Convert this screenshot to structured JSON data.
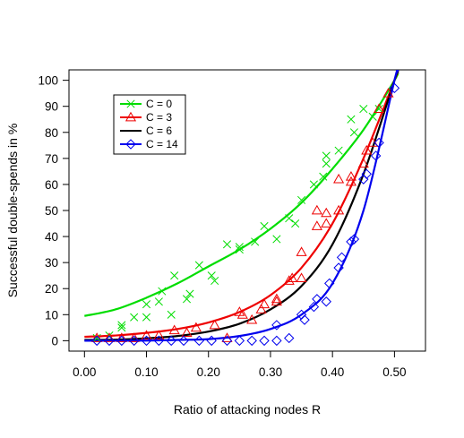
{
  "chart_data": {
    "type": "scatter",
    "title": "",
    "xlabel": "Ratio of attacking nodes R",
    "ylabel": "Successful double-spends in %",
    "xlim": [
      -0.025,
      0.55
    ],
    "ylim": [
      -4,
      104
    ],
    "x_ticks": [
      0.0,
      0.1,
      0.2,
      0.3,
      0.4,
      0.5
    ],
    "x_tick_labels": [
      "0.00",
      "0.10",
      "0.20",
      "0.30",
      "0.40",
      "0.50"
    ],
    "y_ticks": [
      0,
      10,
      20,
      30,
      40,
      50,
      60,
      70,
      80,
      90,
      100
    ],
    "y_tick_labels": [
      "0",
      "10",
      "20",
      "30",
      "40",
      "50",
      "60",
      "70",
      "80",
      "90",
      "100"
    ],
    "grid": false,
    "legend_position": "top-left",
    "series": [
      {
        "name": "C = 0",
        "color": "#00dd00",
        "marker": "x",
        "points": [
          [
            0.02,
            1
          ],
          [
            0.04,
            2
          ],
          [
            0.06,
            5
          ],
          [
            0.06,
            6
          ],
          [
            0.08,
            9
          ],
          [
            0.1,
            9
          ],
          [
            0.1,
            14
          ],
          [
            0.12,
            15
          ],
          [
            0.125,
            19
          ],
          [
            0.14,
            10
          ],
          [
            0.145,
            25
          ],
          [
            0.165,
            16
          ],
          [
            0.17,
            18
          ],
          [
            0.185,
            29
          ],
          [
            0.205,
            25
          ],
          [
            0.21,
            23
          ],
          [
            0.23,
            37
          ],
          [
            0.25,
            35
          ],
          [
            0.25,
            36
          ],
          [
            0.275,
            38
          ],
          [
            0.29,
            44
          ],
          [
            0.31,
            39
          ],
          [
            0.33,
            47
          ],
          [
            0.34,
            45
          ],
          [
            0.35,
            54
          ],
          [
            0.37,
            60
          ],
          [
            0.385,
            63
          ],
          [
            0.39,
            68
          ],
          [
            0.39,
            71
          ],
          [
            0.41,
            73
          ],
          [
            0.43,
            85
          ],
          [
            0.435,
            80
          ],
          [
            0.45,
            89
          ],
          [
            0.465,
            86
          ],
          [
            0.475,
            89
          ]
        ],
        "fit": [
          [
            0.0,
            9.5
          ],
          [
            0.05,
            12
          ],
          [
            0.1,
            16.5
          ],
          [
            0.15,
            22
          ],
          [
            0.2,
            28.5
          ],
          [
            0.25,
            35
          ],
          [
            0.3,
            43
          ],
          [
            0.35,
            53
          ],
          [
            0.4,
            66
          ],
          [
            0.45,
            81
          ],
          [
            0.5,
            100
          ],
          [
            0.505,
            103
          ]
        ]
      },
      {
        "name": "C = 3",
        "color": "#ee0000",
        "marker": "triangle",
        "points": [
          [
            0.02,
            1
          ],
          [
            0.04,
            1
          ],
          [
            0.06,
            1
          ],
          [
            0.08,
            1
          ],
          [
            0.1,
            2
          ],
          [
            0.12,
            2
          ],
          [
            0.145,
            4
          ],
          [
            0.165,
            3
          ],
          [
            0.18,
            5
          ],
          [
            0.21,
            6
          ],
          [
            0.23,
            1
          ],
          [
            0.25,
            11
          ],
          [
            0.255,
            10
          ],
          [
            0.27,
            8
          ],
          [
            0.285,
            12
          ],
          [
            0.29,
            14
          ],
          [
            0.31,
            15
          ],
          [
            0.31,
            16
          ],
          [
            0.33,
            23
          ],
          [
            0.335,
            24
          ],
          [
            0.35,
            24
          ],
          [
            0.35,
            34
          ],
          [
            0.375,
            44
          ],
          [
            0.375,
            50
          ],
          [
            0.39,
            45
          ],
          [
            0.39,
            49
          ],
          [
            0.41,
            50
          ],
          [
            0.41,
            62
          ],
          [
            0.43,
            63
          ],
          [
            0.43,
            61
          ],
          [
            0.45,
            68
          ],
          [
            0.455,
            73
          ],
          [
            0.465,
            76
          ],
          [
            0.475,
            89
          ],
          [
            0.49,
            95
          ]
        ],
        "fit": [
          [
            0.0,
            1.5
          ],
          [
            0.05,
            2
          ],
          [
            0.1,
            3
          ],
          [
            0.15,
            4.5
          ],
          [
            0.2,
            7
          ],
          [
            0.25,
            11
          ],
          [
            0.3,
            17.5
          ],
          [
            0.35,
            28
          ],
          [
            0.4,
            45
          ],
          [
            0.45,
            70
          ],
          [
            0.5,
            100
          ],
          [
            0.505,
            103
          ]
        ]
      },
      {
        "name": "C = 6",
        "color": "#000000",
        "marker": "none",
        "points": [],
        "fit": [
          [
            0.0,
            0.3
          ],
          [
            0.05,
            0.4
          ],
          [
            0.1,
            0.9
          ],
          [
            0.15,
            1.8
          ],
          [
            0.2,
            3.5
          ],
          [
            0.25,
            6.5
          ],
          [
            0.3,
            12
          ],
          [
            0.35,
            21
          ],
          [
            0.4,
            37
          ],
          [
            0.45,
            64
          ],
          [
            0.5,
            100
          ],
          [
            0.505,
            103
          ]
        ]
      },
      {
        "name": "C = 14",
        "color": "#0000ee",
        "marker": "diamond",
        "points": [
          [
            0.02,
            0
          ],
          [
            0.04,
            0
          ],
          [
            0.06,
            0
          ],
          [
            0.08,
            0
          ],
          [
            0.1,
            0
          ],
          [
            0.12,
            0
          ],
          [
            0.14,
            0
          ],
          [
            0.16,
            0
          ],
          [
            0.185,
            0
          ],
          [
            0.205,
            0
          ],
          [
            0.23,
            0
          ],
          [
            0.25,
            0
          ],
          [
            0.27,
            0
          ],
          [
            0.29,
            0
          ],
          [
            0.31,
            0
          ],
          [
            0.31,
            6
          ],
          [
            0.33,
            1
          ],
          [
            0.35,
            10
          ],
          [
            0.355,
            8
          ],
          [
            0.37,
            13
          ],
          [
            0.375,
            16
          ],
          [
            0.39,
            15
          ],
          [
            0.395,
            22
          ],
          [
            0.41,
            28
          ],
          [
            0.415,
            32
          ],
          [
            0.43,
            38
          ],
          [
            0.435,
            39
          ],
          [
            0.45,
            62
          ],
          [
            0.455,
            64
          ],
          [
            0.47,
            71
          ],
          [
            0.475,
            76
          ],
          [
            0.5,
            97
          ]
        ],
        "fit": [
          [
            0.0,
            0
          ],
          [
            0.1,
            0.05
          ],
          [
            0.15,
            0.3
          ],
          [
            0.2,
            0.6
          ],
          [
            0.25,
            1.8
          ],
          [
            0.3,
            4.5
          ],
          [
            0.35,
            10
          ],
          [
            0.4,
            22
          ],
          [
            0.45,
            50
          ],
          [
            0.5,
            100
          ],
          [
            0.505,
            103
          ]
        ]
      }
    ]
  }
}
